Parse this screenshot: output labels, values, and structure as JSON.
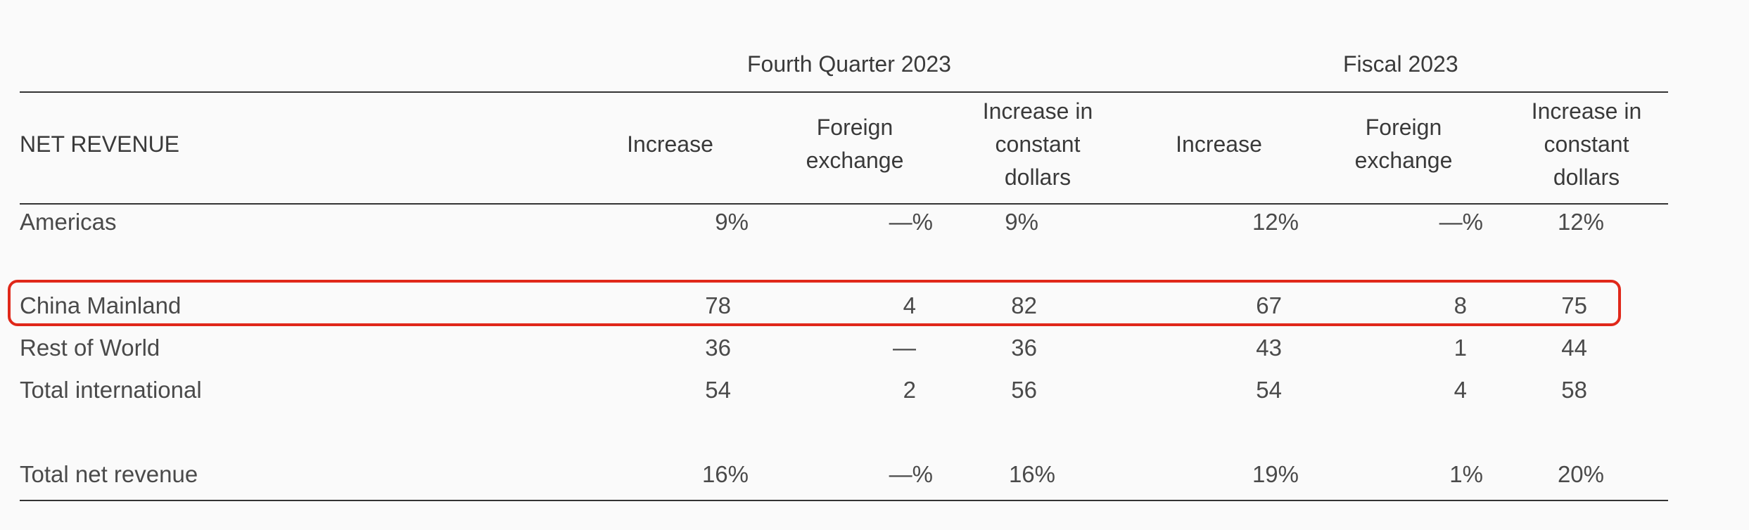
{
  "groups": {
    "q4": "Fourth Quarter 2023",
    "fy": "Fiscal 2023"
  },
  "columns": {
    "row_header": "NET REVENUE",
    "increase": "Increase",
    "fx_line1": "Foreign",
    "fx_line2": "exchange",
    "const_line1": "Increase in",
    "const_line2": "constant",
    "const_line3": "dollars"
  },
  "rows": [
    {
      "label": "Americas",
      "q4_inc": "9%",
      "q4_fx": "—%",
      "q4_const": "9%",
      "fy_inc": "12%",
      "fy_fx": "—%",
      "fy_const": "12%"
    },
    {
      "label": "China Mainland",
      "q4_inc": "78",
      "q4_fx": "4",
      "q4_const": "82",
      "fy_inc": "67",
      "fy_fx": "8",
      "fy_const": "75"
    },
    {
      "label": "Rest of World",
      "q4_inc": "36",
      "q4_fx": "—",
      "q4_const": "36",
      "fy_inc": "43",
      "fy_fx": "1",
      "fy_const": "44"
    },
    {
      "label": "Total international",
      "q4_inc": "54",
      "q4_fx": "2",
      "q4_const": "56",
      "fy_inc": "54",
      "fy_fx": "4",
      "fy_const": "58"
    },
    {
      "label": "Total net revenue",
      "q4_inc": "16%",
      "q4_fx": "—%",
      "q4_const": "16%",
      "fy_inc": "19%",
      "fy_fx": "1%",
      "fy_const": "20%"
    }
  ],
  "highlight_color": "#e0281a"
}
